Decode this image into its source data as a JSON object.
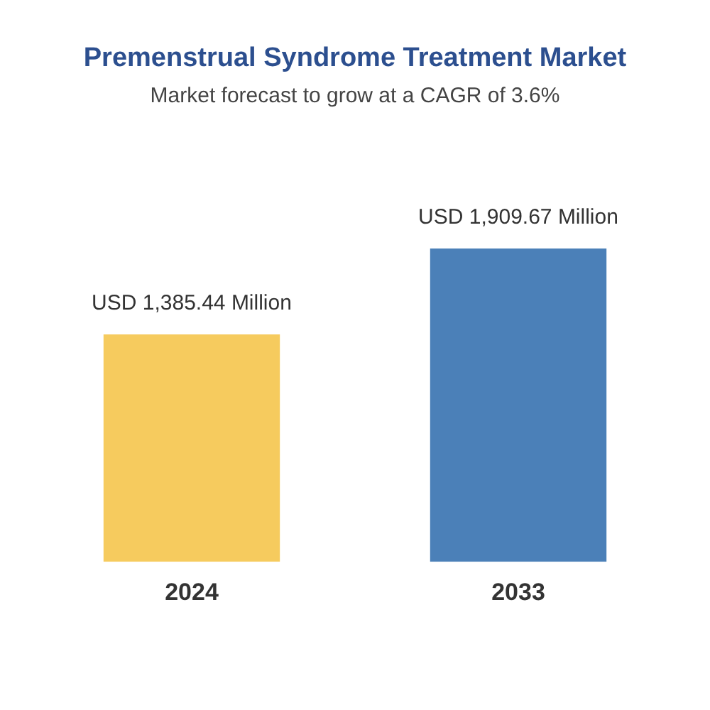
{
  "chart_data": {
    "type": "bar",
    "title": "Premenstrual Syndrome Treatment Market",
    "subtitle": "Market forecast to grow at a CAGR of 3.6%",
    "categories": [
      "2024",
      "2033"
    ],
    "values": [
      1385.44,
      1909.67
    ],
    "colors": [
      "#f6cb5e",
      "#4b80b8"
    ],
    "value_labels": [
      "USD 1,385.44 Million",
      "USD 1,909.67 Million"
    ],
    "grid": false,
    "legend": false
  }
}
